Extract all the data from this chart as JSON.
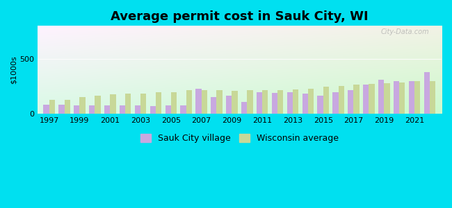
{
  "title": "Average permit cost in Sauk City, WI",
  "ylabel": "$1000s",
  "background_outer": "#00e0f0",
  "years": [
    1997,
    1998,
    1999,
    2000,
    2001,
    2002,
    2003,
    2004,
    2005,
    2006,
    2007,
    2008,
    2009,
    2010,
    2011,
    2012,
    2013,
    2014,
    2015,
    2016,
    2017,
    2018,
    2019,
    2020,
    2021,
    2022
  ],
  "sauk_city": [
    85,
    85,
    80,
    75,
    80,
    75,
    75,
    70,
    75,
    80,
    230,
    155,
    165,
    110,
    200,
    190,
    195,
    185,
    165,
    195,
    215,
    265,
    310,
    295,
    295,
    380
  ],
  "wisconsin": [
    130,
    130,
    150,
    165,
    175,
    185,
    185,
    195,
    200,
    215,
    215,
    215,
    210,
    215,
    215,
    215,
    220,
    230,
    245,
    255,
    265,
    270,
    280,
    285,
    295,
    295
  ],
  "bar_color_sauk": "#c8a8e0",
  "bar_color_wi": "#c8d898",
  "ylim": [
    0,
    800
  ],
  "yticks": [
    0,
    500
  ],
  "bar_width": 0.38,
  "title_fontsize": 13,
  "tick_fontsize": 8,
  "legend_fontsize": 9,
  "watermark": "City-Data.com"
}
